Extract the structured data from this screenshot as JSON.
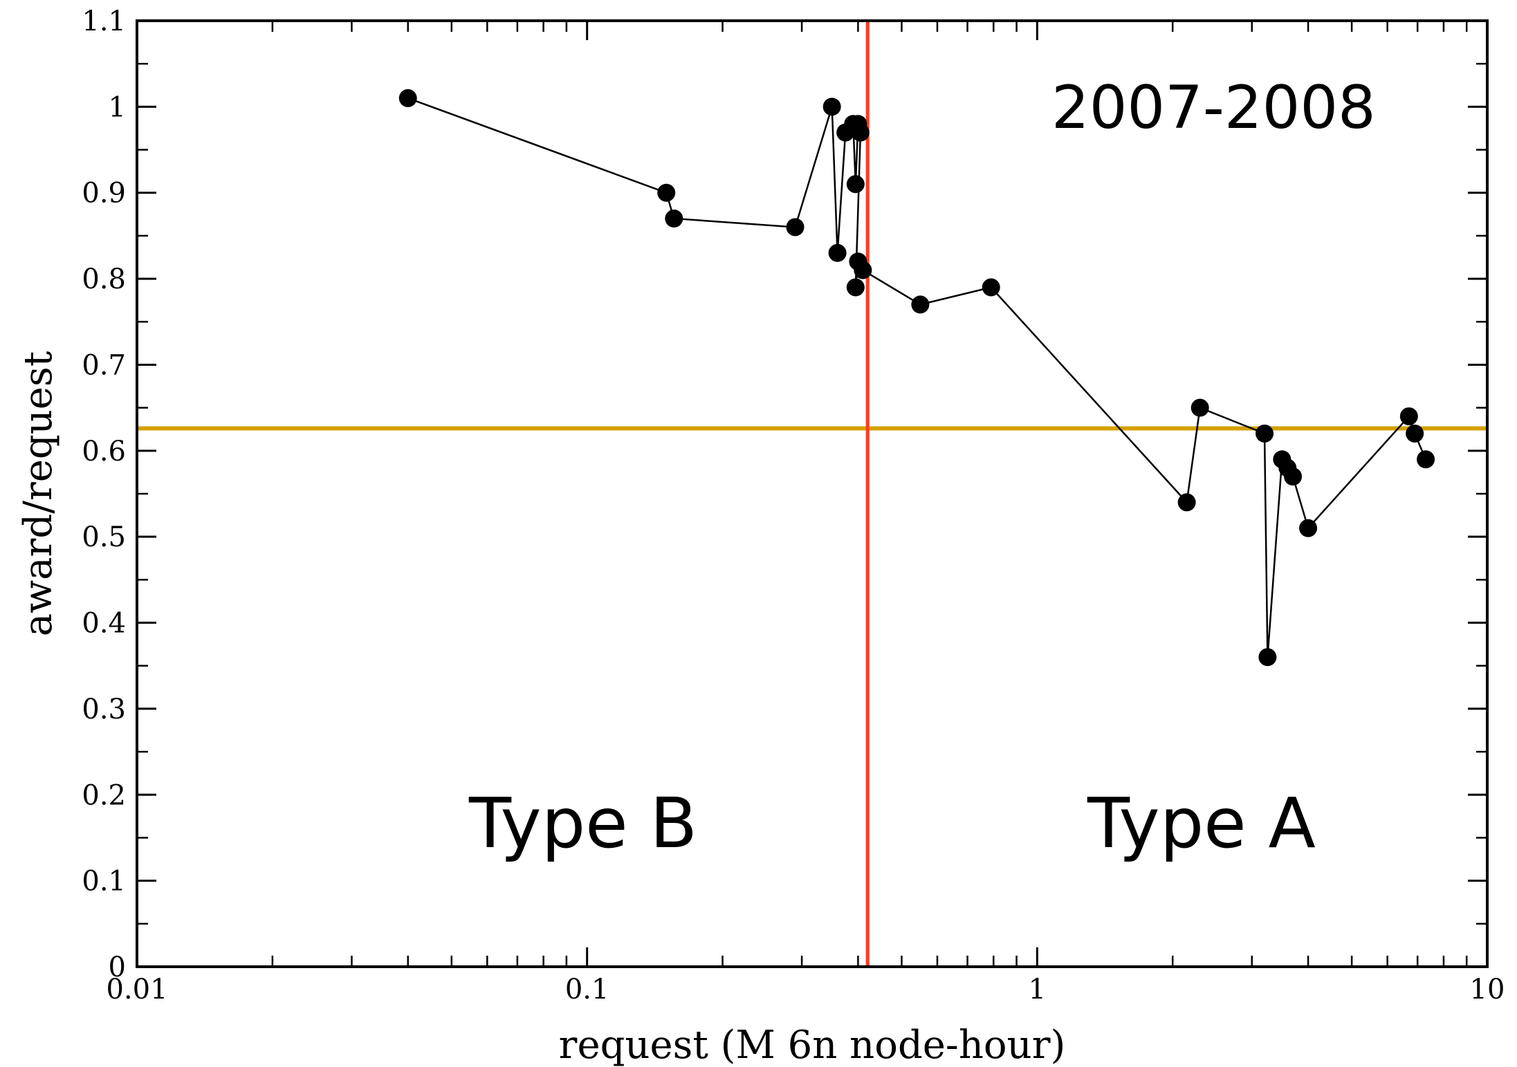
{
  "chart_data": {
    "type": "line",
    "title": "",
    "xlabel": "request (M 6n node-hour)",
    "ylabel": "award/request",
    "x_scale": "log",
    "xlim": [
      0.01,
      10
    ],
    "ylim": [
      0,
      1.1
    ],
    "grid": false,
    "x_ticks": [
      "0.01",
      "0.1",
      "1",
      "10"
    ],
    "y_ticks": [
      "0",
      "0.1",
      "0.2",
      "0.3",
      "0.4",
      "0.5",
      "0.6",
      "0.7",
      "0.8",
      "0.9",
      "1",
      "1.1"
    ],
    "annotations": {
      "period": "2007-2008",
      "left_region": "Type B",
      "right_region": "Type A"
    },
    "reference_lines": {
      "vertical_x": 0.42,
      "vertical_color": "#ff3b1f",
      "horizontal_y": 0.626,
      "horizontal_color": "#d4a000"
    },
    "series": [
      {
        "color": "#000000",
        "points": [
          [
            0.04,
            1.01
          ],
          [
            0.15,
            0.9
          ],
          [
            0.156,
            0.87
          ],
          [
            0.29,
            0.86
          ],
          [
            0.35,
            1.0
          ],
          [
            0.36,
            0.83
          ],
          [
            0.375,
            0.97
          ],
          [
            0.39,
            0.98
          ],
          [
            0.395,
            0.91
          ],
          [
            0.4,
            0.98
          ],
          [
            0.405,
            0.97
          ],
          [
            0.395,
            0.79
          ],
          [
            0.4,
            0.82
          ],
          [
            0.41,
            0.81
          ],
          [
            0.55,
            0.77
          ],
          [
            0.79,
            0.79
          ],
          [
            2.15,
            0.54
          ],
          [
            2.3,
            0.65
          ],
          [
            3.2,
            0.62
          ],
          [
            3.25,
            0.36
          ],
          [
            3.5,
            0.59
          ],
          [
            3.6,
            0.58
          ],
          [
            3.7,
            0.57
          ],
          [
            4.0,
            0.51
          ],
          [
            6.7,
            0.64
          ],
          [
            6.9,
            0.62
          ],
          [
            7.3,
            0.59
          ]
        ]
      }
    ]
  }
}
